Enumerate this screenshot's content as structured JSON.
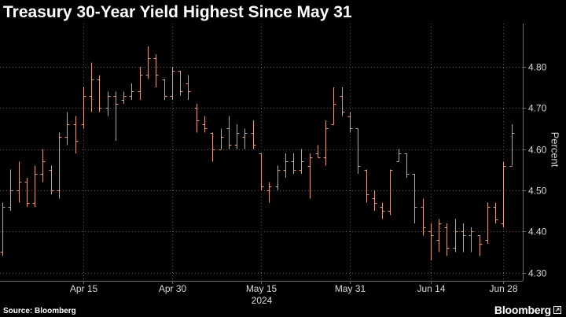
{
  "colors": {
    "background": "#000000",
    "title": "#ffffff",
    "axis_text": "#d9d9d9",
    "grid": "#5a5a5a",
    "axis_line": "#6e6e6e",
    "bars": "#e39b6b"
  },
  "footer": {
    "source": "Source: Bloomberg",
    "logo": "Bloomberg",
    "logo_icon": "external-link-icon"
  },
  "chart_data": {
    "type": "bar",
    "bar_style": "ohlc",
    "title": "Treasury 30-Year Yield Highest Since May 31",
    "xlabel": "",
    "ylabel": "Percent",
    "y_axis_side": "right",
    "ylim": [
      4.28,
      4.905
    ],
    "y_ticks": [
      "4.30",
      "4.40",
      "4.50",
      "4.60",
      "4.70",
      "4.80"
    ],
    "x_ticks": [
      {
        "label": "Apr 15",
        "date": "2024-04-15"
      },
      {
        "label": "Apr 30",
        "date": "2024-04-30"
      },
      {
        "label": "May 15",
        "date": "2024-05-15"
      },
      {
        "label": "May 31",
        "date": "2024-05-31"
      },
      {
        "label": "Jun 14",
        "date": "2024-06-14"
      },
      {
        "label": "Jun 28",
        "date": "2024-06-28"
      }
    ],
    "x_year_label": "2024",
    "grid": true,
    "x": [
      "2024-04-01",
      "2024-04-02",
      "2024-04-03",
      "2024-04-04",
      "2024-04-05",
      "2024-04-08",
      "2024-04-09",
      "2024-04-10",
      "2024-04-11",
      "2024-04-12",
      "2024-04-15",
      "2024-04-16",
      "2024-04-17",
      "2024-04-18",
      "2024-04-19",
      "2024-04-22",
      "2024-04-23",
      "2024-04-24",
      "2024-04-25",
      "2024-04-26",
      "2024-04-29",
      "2024-04-30",
      "2024-05-01",
      "2024-05-02",
      "2024-05-03",
      "2024-05-06",
      "2024-05-07",
      "2024-05-08",
      "2024-05-09",
      "2024-05-10",
      "2024-05-13",
      "2024-05-14",
      "2024-05-15",
      "2024-05-16",
      "2024-05-17",
      "2024-05-20",
      "2024-05-21",
      "2024-05-22",
      "2024-05-23",
      "2024-05-24",
      "2024-05-28",
      "2024-05-29",
      "2024-05-30",
      "2024-05-31",
      "2024-06-03",
      "2024-06-04",
      "2024-06-05",
      "2024-06-06",
      "2024-06-07",
      "2024-06-10",
      "2024-06-11",
      "2024-06-12",
      "2024-06-13",
      "2024-06-14",
      "2024-06-17",
      "2024-06-18",
      "2024-06-20",
      "2024-06-21",
      "2024-06-24",
      "2024-06-25",
      "2024-06-26",
      "2024-06-27",
      "2024-06-28",
      "2024-07-01"
    ],
    "open": [
      4.35,
      4.46,
      4.5,
      4.52,
      4.47,
      4.54,
      4.55,
      4.5,
      4.63,
      4.66,
      4.66,
      4.73,
      4.77,
      4.7,
      4.73,
      4.72,
      4.73,
      4.74,
      4.78,
      4.82,
      4.77,
      4.73,
      4.79,
      4.76,
      4.7,
      4.66,
      4.64,
      4.6,
      4.65,
      4.61,
      4.63,
      4.64,
      4.59,
      4.5,
      4.51,
      4.55,
      4.57,
      4.55,
      4.56,
      4.59,
      4.58,
      4.66,
      4.73,
      4.68,
      4.65,
      4.55,
      4.48,
      4.46,
      4.45,
      4.57,
      4.59,
      4.54,
      4.46,
      4.4,
      4.38,
      4.41,
      4.36,
      4.4,
      4.39,
      4.39,
      4.38,
      4.46,
      4.42,
      4.56
    ],
    "high": [
      4.47,
      4.55,
      4.57,
      4.53,
      4.56,
      4.6,
      4.56,
      4.64,
      4.69,
      4.68,
      4.75,
      4.81,
      4.78,
      4.74,
      4.74,
      4.74,
      4.76,
      4.8,
      4.85,
      4.83,
      4.77,
      4.8,
      4.79,
      4.78,
      4.71,
      4.68,
      4.64,
      4.65,
      4.68,
      4.66,
      4.65,
      4.67,
      4.59,
      4.52,
      4.56,
      4.59,
      4.59,
      4.6,
      4.59,
      4.61,
      4.67,
      4.75,
      4.75,
      4.69,
      4.65,
      4.55,
      4.5,
      4.47,
      4.55,
      4.6,
      4.59,
      4.54,
      4.48,
      4.42,
      4.43,
      4.42,
      4.43,
      4.42,
      4.41,
      4.39,
      4.47,
      4.47,
      4.57,
      4.66
    ],
    "low": [
      4.34,
      4.45,
      4.47,
      4.46,
      4.46,
      4.52,
      4.49,
      4.48,
      4.61,
      4.59,
      4.65,
      4.69,
      4.69,
      4.68,
      4.62,
      4.71,
      4.72,
      4.72,
      4.77,
      4.75,
      4.72,
      4.72,
      4.73,
      4.72,
      4.64,
      4.64,
      4.57,
      4.6,
      4.6,
      4.6,
      4.6,
      4.6,
      4.5,
      4.47,
      4.5,
      4.53,
      4.54,
      4.54,
      4.48,
      4.58,
      4.56,
      4.66,
      4.68,
      4.64,
      4.54,
      4.47,
      4.45,
      4.43,
      4.44,
      4.57,
      4.53,
      4.42,
      4.39,
      4.33,
      4.35,
      4.34,
      4.35,
      4.35,
      4.35,
      4.34,
      4.37,
      4.42,
      4.41,
      4.56
    ],
    "close": [
      4.46,
      4.5,
      4.52,
      4.47,
      4.54,
      4.57,
      4.5,
      4.63,
      4.66,
      4.62,
      4.73,
      4.77,
      4.7,
      4.73,
      4.71,
      4.73,
      4.74,
      4.78,
      4.82,
      4.78,
      4.73,
      4.79,
      4.74,
      4.74,
      4.67,
      4.65,
      4.6,
      4.63,
      4.61,
      4.64,
      4.64,
      4.61,
      4.51,
      4.51,
      4.55,
      4.57,
      4.55,
      4.57,
      4.58,
      4.58,
      4.65,
      4.71,
      4.69,
      4.65,
      4.56,
      4.49,
      4.47,
      4.45,
      4.55,
      4.59,
      4.54,
      4.46,
      4.41,
      4.39,
      4.42,
      4.36,
      4.4,
      4.39,
      4.4,
      4.37,
      4.46,
      4.43,
      4.56,
      4.64
    ]
  }
}
